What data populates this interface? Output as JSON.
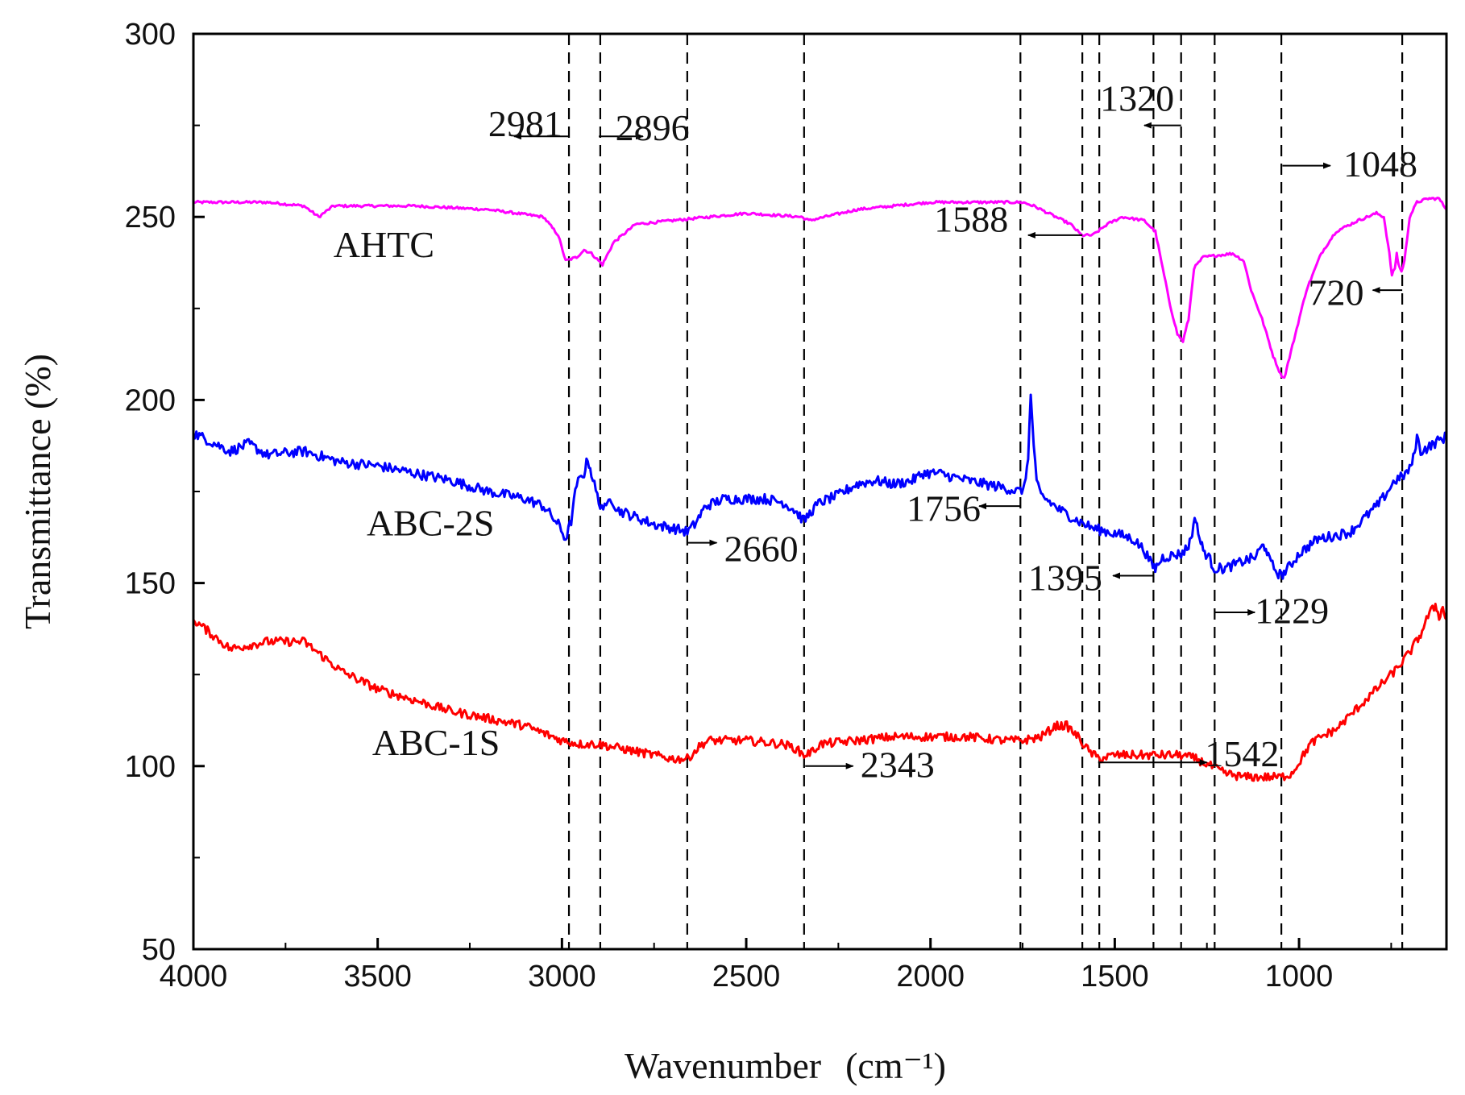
{
  "chart_data": {
    "type": "line",
    "title": "",
    "xlabel": "Wavenumber",
    "xlabel_unit": "(cm⁻¹)",
    "ylabel": "Transmittance (%)",
    "xlim": [
      4000,
      600
    ],
    "ylim": [
      50,
      300
    ],
    "x_ticks": [
      4000,
      3500,
      3000,
      2500,
      2000,
      1500,
      1000
    ],
    "y_ticks": [
      50,
      100,
      150,
      200,
      250,
      300
    ],
    "x_tick_labels": [
      "4000",
      "3500",
      "3000",
      "2500",
      "2000",
      "1500",
      "1000"
    ],
    "y_tick_labels": [
      "50",
      "100",
      "150",
      "200",
      "250",
      "300"
    ],
    "grid": false,
    "vlines": [
      2981,
      2896,
      2660,
      2343,
      1756,
      1588,
      1542,
      1395,
      1320,
      1229,
      1048,
      720
    ],
    "series": [
      {
        "name": "AHTC",
        "color": "#ff00ff",
        "noise": 0.35,
        "points": [
          [
            4000,
            254
          ],
          [
            3800,
            254
          ],
          [
            3700,
            253
          ],
          [
            3660,
            250
          ],
          [
            3620,
            253
          ],
          [
            3400,
            253
          ],
          [
            3200,
            252
          ],
          [
            3050,
            250
          ],
          [
            3010,
            245
          ],
          [
            2990,
            238
          ],
          [
            2960,
            239
          ],
          [
            2940,
            241
          ],
          [
            2920,
            240
          ],
          [
            2890,
            237
          ],
          [
            2860,
            243
          ],
          [
            2800,
            248
          ],
          [
            2700,
            249
          ],
          [
            2500,
            251
          ],
          [
            2350,
            250
          ],
          [
            2330,
            249
          ],
          [
            2200,
            252
          ],
          [
            2000,
            254
          ],
          [
            1800,
            254
          ],
          [
            1750,
            254
          ],
          [
            1720,
            253
          ],
          [
            1680,
            251
          ],
          [
            1620,
            248
          ],
          [
            1590,
            245
          ],
          [
            1560,
            245
          ],
          [
            1520,
            248
          ],
          [
            1480,
            250
          ],
          [
            1420,
            249
          ],
          [
            1390,
            246
          ],
          [
            1370,
            236
          ],
          [
            1350,
            226
          ],
          [
            1330,
            218
          ],
          [
            1315,
            216
          ],
          [
            1300,
            222
          ],
          [
            1285,
            236
          ],
          [
            1260,
            239
          ],
          [
            1180,
            240
          ],
          [
            1150,
            238
          ],
          [
            1130,
            230
          ],
          [
            1100,
            222
          ],
          [
            1070,
            212
          ],
          [
            1050,
            207
          ],
          [
            1040,
            206
          ],
          [
            1030,
            210
          ],
          [
            1010,
            218
          ],
          [
            980,
            230
          ],
          [
            940,
            240
          ],
          [
            900,
            246
          ],
          [
            840,
            249
          ],
          [
            790,
            251
          ],
          [
            770,
            250
          ],
          [
            755,
            240
          ],
          [
            748,
            234
          ],
          [
            740,
            236
          ],
          [
            735,
            240
          ],
          [
            730,
            237
          ],
          [
            722,
            235
          ],
          [
            714,
            238
          ],
          [
            700,
            250
          ],
          [
            680,
            254
          ],
          [
            650,
            255
          ],
          [
            620,
            255
          ],
          [
            600,
            252
          ]
        ]
      },
      {
        "name": "ABC-2S",
        "color": "#0000ff",
        "noise": 1.4,
        "points": [
          [
            4000,
            191
          ],
          [
            3900,
            186
          ],
          [
            3850,
            188
          ],
          [
            3800,
            185
          ],
          [
            3700,
            186
          ],
          [
            3600,
            183
          ],
          [
            3500,
            182
          ],
          [
            3400,
            180
          ],
          [
            3300,
            178
          ],
          [
            3200,
            175
          ],
          [
            3100,
            173
          ],
          [
            3050,
            171
          ],
          [
            3010,
            166
          ],
          [
            2990,
            162
          ],
          [
            2975,
            167
          ],
          [
            2960,
            177
          ],
          [
            2940,
            180
          ],
          [
            2930,
            184
          ],
          [
            2920,
            180
          ],
          [
            2900,
            172
          ],
          [
            2880,
            170
          ],
          [
            2870,
            174
          ],
          [
            2850,
            170
          ],
          [
            2800,
            168
          ],
          [
            2750,
            166
          ],
          [
            2700,
            165
          ],
          [
            2660,
            164
          ],
          [
            2640,
            166
          ],
          [
            2610,
            171
          ],
          [
            2560,
            173
          ],
          [
            2450,
            173
          ],
          [
            2400,
            172
          ],
          [
            2370,
            170
          ],
          [
            2343,
            167
          ],
          [
            2320,
            170
          ],
          [
            2300,
            172
          ],
          [
            2250,
            174
          ],
          [
            2200,
            177
          ],
          [
            2150,
            178
          ],
          [
            2100,
            177
          ],
          [
            2050,
            178
          ],
          [
            2020,
            180
          ],
          [
            1980,
            180
          ],
          [
            1900,
            178
          ],
          [
            1800,
            176
          ],
          [
            1760,
            175
          ],
          [
            1745,
            176
          ],
          [
            1735,
            185
          ],
          [
            1728,
            201
          ],
          [
            1720,
            188
          ],
          [
            1712,
            177
          ],
          [
            1700,
            174
          ],
          [
            1650,
            170
          ],
          [
            1600,
            167
          ],
          [
            1560,
            165
          ],
          [
            1520,
            164
          ],
          [
            1480,
            163
          ],
          [
            1450,
            162
          ],
          [
            1420,
            159
          ],
          [
            1400,
            155
          ],
          [
            1390,
            154
          ],
          [
            1370,
            157
          ],
          [
            1320,
            158
          ],
          [
            1300,
            160
          ],
          [
            1290,
            164
          ],
          [
            1280,
            168
          ],
          [
            1270,
            162
          ],
          [
            1260,
            159
          ],
          [
            1245,
            157
          ],
          [
            1230,
            154
          ],
          [
            1200,
            154
          ],
          [
            1150,
            156
          ],
          [
            1120,
            157
          ],
          [
            1100,
            160
          ],
          [
            1090,
            160
          ],
          [
            1080,
            156
          ],
          [
            1060,
            153
          ],
          [
            1048,
            152
          ],
          [
            1030,
            154
          ],
          [
            1000,
            158
          ],
          [
            950,
            162
          ],
          [
            900,
            163
          ],
          [
            860,
            164
          ],
          [
            820,
            168
          ],
          [
            780,
            172
          ],
          [
            740,
            178
          ],
          [
            720,
            179
          ],
          [
            700,
            181
          ],
          [
            690,
            184
          ],
          [
            680,
            190
          ],
          [
            670,
            186
          ],
          [
            650,
            187
          ],
          [
            620,
            189
          ],
          [
            600,
            190
          ]
        ]
      },
      {
        "name": "ABC-1S",
        "color": "#ff0000",
        "noise": 1.2,
        "points": [
          [
            4000,
            140
          ],
          [
            3950,
            136
          ],
          [
            3900,
            132
          ],
          [
            3850,
            133
          ],
          [
            3800,
            134
          ],
          [
            3700,
            134
          ],
          [
            3650,
            130
          ],
          [
            3600,
            126
          ],
          [
            3500,
            121
          ],
          [
            3400,
            118
          ],
          [
            3300,
            115
          ],
          [
            3200,
            113
          ],
          [
            3100,
            111
          ],
          [
            3050,
            109
          ],
          [
            3000,
            107
          ],
          [
            2950,
            106
          ],
          [
            2900,
            106
          ],
          [
            2850,
            105
          ],
          [
            2800,
            104
          ],
          [
            2750,
            103
          ],
          [
            2700,
            102
          ],
          [
            2660,
            102
          ],
          [
            2640,
            104
          ],
          [
            2620,
            106
          ],
          [
            2600,
            107
          ],
          [
            2500,
            107
          ],
          [
            2400,
            106
          ],
          [
            2370,
            105
          ],
          [
            2343,
            103
          ],
          [
            2320,
            104
          ],
          [
            2300,
            106
          ],
          [
            2200,
            107
          ],
          [
            2100,
            108
          ],
          [
            2000,
            108
          ],
          [
            1900,
            108
          ],
          [
            1800,
            107
          ],
          [
            1750,
            107
          ],
          [
            1700,
            108
          ],
          [
            1660,
            111
          ],
          [
            1630,
            111
          ],
          [
            1600,
            108
          ],
          [
            1570,
            104
          ],
          [
            1542,
            102
          ],
          [
            1500,
            103
          ],
          [
            1400,
            103
          ],
          [
            1320,
            103
          ],
          [
            1280,
            102
          ],
          [
            1240,
            100
          ],
          [
            1200,
            98
          ],
          [
            1150,
            97
          ],
          [
            1100,
            97
          ],
          [
            1048,
            97
          ],
          [
            1020,
            98
          ],
          [
            1000,
            101
          ],
          [
            970,
            106
          ],
          [
            940,
            108
          ],
          [
            900,
            110
          ],
          [
            860,
            114
          ],
          [
            820,
            118
          ],
          [
            780,
            122
          ],
          [
            740,
            126
          ],
          [
            700,
            131
          ],
          [
            670,
            136
          ],
          [
            650,
            141
          ],
          [
            630,
            144
          ],
          [
            620,
            141
          ],
          [
            610,
            143
          ],
          [
            600,
            140
          ]
        ]
      }
    ],
    "series_labels": [
      {
        "text": "AHTC",
        "series": "AHTC",
        "x": 3620,
        "y": 239
      },
      {
        "text": "ABC-2S",
        "series": "ABC-2S",
        "x": 3530,
        "y": 163
      },
      {
        "text": "ABC-1S",
        "series": "ABC-1S",
        "x": 3515,
        "y": 103
      }
    ],
    "annotations": [
      {
        "text": "2981",
        "x": 3200,
        "y": 272,
        "arrow_from": [
          2980,
          272
        ],
        "arrow_to": [
          3130,
          272
        ]
      },
      {
        "text": "2896",
        "x": 2855,
        "y": 271,
        "arrow_from": [
          2900,
          272
        ],
        "arrow_to": [
          2780,
          272
        ]
      },
      {
        "text": "1320",
        "x": 1540,
        "y": 279,
        "arrow_from": [
          1320,
          275
        ],
        "arrow_to": [
          1420,
          275
        ]
      },
      {
        "text": "1048",
        "x": 880,
        "y": 261,
        "arrow_from": [
          1045,
          264
        ],
        "arrow_to": [
          915,
          264
        ]
      },
      {
        "text": "1588",
        "x": 1990,
        "y": 246,
        "arrow_from": [
          1588,
          245
        ],
        "arrow_to": [
          1735,
          245
        ]
      },
      {
        "text": "720",
        "x": 975,
        "y": 226,
        "arrow_from": [
          720,
          230
        ],
        "arrow_to": [
          800,
          230
        ]
      },
      {
        "text": "1756",
        "x": 2065,
        "y": 167,
        "arrow_from": [
          1756,
          171
        ],
        "arrow_to": [
          1868,
          171
        ]
      },
      {
        "text": "2660",
        "x": 2560,
        "y": 156,
        "arrow_from": [
          2660,
          161
        ],
        "arrow_to": [
          2580,
          161
        ]
      },
      {
        "text": "1395",
        "x": 1735,
        "y": 148,
        "arrow_from": [
          1395,
          152
        ],
        "arrow_to": [
          1505,
          152
        ]
      },
      {
        "text": "1229",
        "x": 1120,
        "y": 139,
        "arrow_from": [
          1229,
          142
        ],
        "arrow_to": [
          1120,
          142
        ]
      },
      {
        "text": "2343",
        "x": 2190,
        "y": 97,
        "arrow_from": [
          2340,
          100
        ],
        "arrow_to": [
          2210,
          100
        ]
      },
      {
        "text": "1542",
        "x": 1255,
        "y": 100,
        "arrow_from": [
          1545,
          101
        ],
        "arrow_to": [
          1250,
          101
        ]
      }
    ]
  }
}
